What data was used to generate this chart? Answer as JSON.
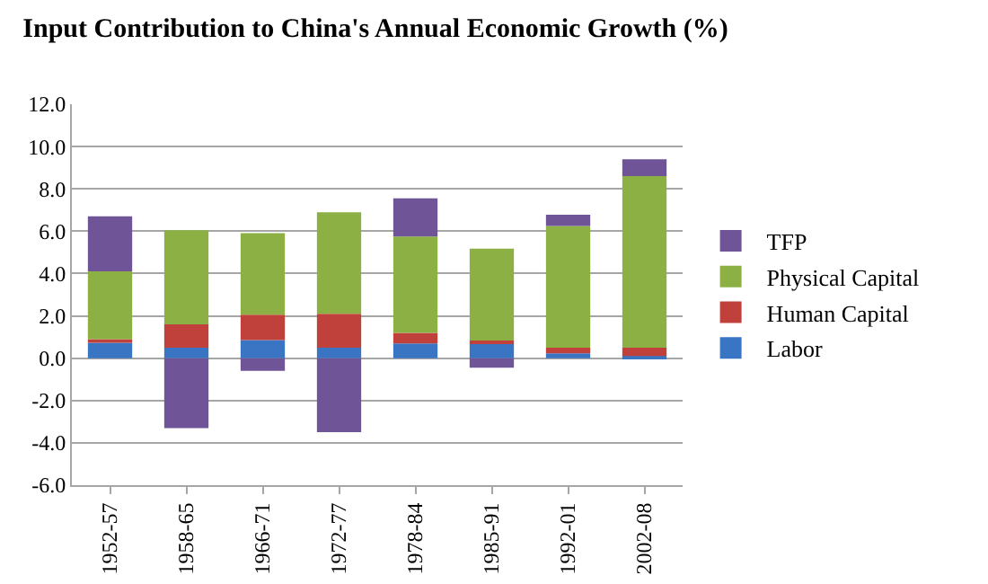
{
  "chart_data": {
    "type": "bar",
    "title": "Input Contribution to China's Annual Economic Growth (%)",
    "categories": [
      "1952-57",
      "1958-65",
      "1966-71",
      "1972-77",
      "1978-84",
      "1985-91",
      "1992-01",
      "2002-08"
    ],
    "stacked": true,
    "series": [
      {
        "name": "Labor",
        "color": "#3a75c4",
        "values": [
          0.73,
          0.5,
          0.86,
          0.5,
          0.7,
          0.66,
          0.23,
          0.1
        ]
      },
      {
        "name": "Human Capital",
        "color": "#c0403b",
        "values": [
          0.17,
          1.1,
          1.2,
          1.6,
          0.5,
          0.17,
          0.27,
          0.4
        ]
      },
      {
        "name": "Physical Capital",
        "color": "#8cb043",
        "values": [
          3.2,
          4.45,
          3.85,
          4.8,
          4.55,
          4.35,
          5.75,
          8.1
        ]
      },
      {
        "name": "TFP",
        "color": "#6f5497",
        "values": [
          2.6,
          -3.3,
          -0.6,
          -3.5,
          1.8,
          -0.45,
          0.53,
          0.8
        ]
      }
    ],
    "ylim": [
      -6,
      12
    ],
    "yticks": [
      {
        "value": -6,
        "label": "-6.0"
      },
      {
        "value": -4,
        "label": "-4.0"
      },
      {
        "value": -2,
        "label": "-2.0"
      },
      {
        "value": 0,
        "label": "0.0"
      },
      {
        "value": 2,
        "label": "2.0"
      },
      {
        "value": 4,
        "label": "4.0"
      },
      {
        "value": 6,
        "label": "6.0"
      },
      {
        "value": 8,
        "label": "8.0"
      },
      {
        "value": 10,
        "label": "10.0"
      },
      {
        "value": 12,
        "label": "12.0"
      }
    ],
    "grid": "y",
    "legend": "right"
  }
}
